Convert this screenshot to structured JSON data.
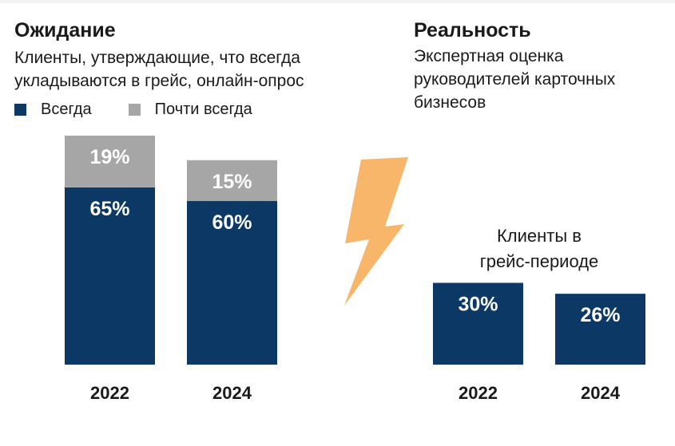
{
  "left_panel": {
    "title": "Ожидание",
    "subtitle_lines": [
      "Клиенты, утверждающие, что всегда",
      "укладываются в грейс, онлайн-опрос"
    ]
  },
  "right_panel": {
    "title": "Реальность",
    "subtitle_lines": [
      "Экспертная оценка",
      "руководителей карточных",
      "бизнесов"
    ]
  },
  "colors": {
    "always": "#0b3864",
    "almost": "#a6a6a6",
    "bolt": "#f7b66a"
  },
  "icons": {
    "divider": "lightning-bolt-icon"
  },
  "chart_data": [
    {
      "type": "bar",
      "stacked": true,
      "categories": [
        "2022",
        "2024"
      ],
      "series": [
        {
          "name": "Всегда",
          "values": [
            65,
            60
          ],
          "labels": [
            "65%",
            "60%"
          ]
        },
        {
          "name": "Почти всегда",
          "values": [
            19,
            15
          ],
          "labels": [
            "19%",
            "15%"
          ]
        }
      ],
      "legend": [
        "Всегда",
        "Почти всегда"
      ],
      "ylim": [
        0,
        100
      ],
      "unit": "%"
    },
    {
      "type": "bar",
      "categories": [
        "2022",
        "2024"
      ],
      "series": [
        {
          "name": "Клиенты в грейс-периоде",
          "values": [
            30,
            26
          ],
          "labels": [
            "30%",
            "26%"
          ]
        }
      ],
      "annotation_lines": [
        "Клиенты в",
        "грейс-периоде"
      ],
      "ylim": [
        0,
        100
      ],
      "unit": "%"
    }
  ]
}
